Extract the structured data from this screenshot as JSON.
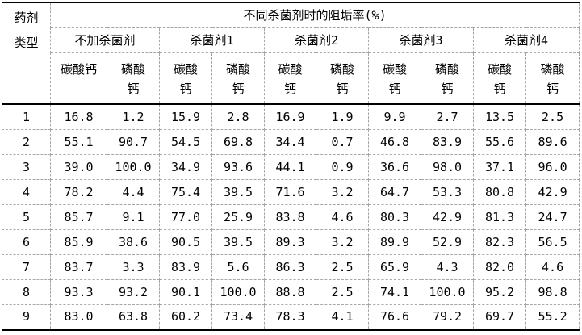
{
  "chart_data": {
    "type": "table",
    "title": "不同杀菌剂时的阻垢率(%)",
    "corner": [
      "药剂",
      "类型"
    ],
    "groups": [
      {
        "label": "不加杀菌剂",
        "subs": [
          [
            "碳酸钙"
          ],
          [
            "磷酸",
            "钙"
          ]
        ]
      },
      {
        "label": "杀菌剂1",
        "subs": [
          [
            "碳酸",
            "钙"
          ],
          [
            "磷酸",
            "钙"
          ]
        ]
      },
      {
        "label": "杀菌剂2",
        "subs": [
          [
            "碳酸",
            "钙"
          ],
          [
            "磷酸",
            "钙"
          ]
        ]
      },
      {
        "label": "杀菌剂3",
        "subs": [
          [
            "碳酸",
            "钙"
          ],
          [
            "磷酸",
            "钙"
          ]
        ]
      },
      {
        "label": "杀菌剂4",
        "subs": [
          [
            "碳酸",
            "钙"
          ],
          [
            "磷酸",
            "钙"
          ]
        ]
      }
    ],
    "rows": [
      {
        "label": "1",
        "values": [
          "16.8",
          "1.2",
          "15.9",
          "2.8",
          "16.9",
          "1.9",
          "9.9",
          "2.7",
          "13.5",
          "2.5"
        ]
      },
      {
        "label": "2",
        "values": [
          "55.1",
          "90.7",
          "54.5",
          "69.8",
          "34.4",
          "0.7",
          "46.8",
          "83.9",
          "55.6",
          "89.6"
        ]
      },
      {
        "label": "3",
        "values": [
          "39.0",
          "100.0",
          "34.9",
          "93.6",
          "44.1",
          "0.9",
          "36.6",
          "98.0",
          "37.1",
          "96.0"
        ]
      },
      {
        "label": "4",
        "values": [
          "78.2",
          "4.4",
          "75.4",
          "39.5",
          "71.6",
          "3.2",
          "64.7",
          "53.3",
          "80.8",
          "42.9"
        ]
      },
      {
        "label": "5",
        "values": [
          "85.7",
          "9.1",
          "77.0",
          "25.9",
          "83.8",
          "4.6",
          "80.3",
          "42.9",
          "81.3",
          "24.7"
        ]
      },
      {
        "label": "6",
        "values": [
          "85.9",
          "38.6",
          "90.5",
          "39.5",
          "89.3",
          "3.2",
          "89.9",
          "52.9",
          "82.3",
          "56.5"
        ]
      },
      {
        "label": "7",
        "values": [
          "83.7",
          "3.3",
          "83.9",
          "5.6",
          "86.3",
          "2.5",
          "65.9",
          "4.3",
          "82.0",
          "4.6"
        ]
      },
      {
        "label": "8",
        "values": [
          "93.3",
          "93.2",
          "90.1",
          "100.0",
          "88.8",
          "2.5",
          "74.1",
          "100.0",
          "95.2",
          "98.8"
        ]
      },
      {
        "label": "9",
        "values": [
          "83.0",
          "63.8",
          "60.2",
          "73.4",
          "78.3",
          "4.1",
          "76.6",
          "79.2",
          "69.7",
          "55.2"
        ]
      }
    ],
    "colors": {
      "text": "#000000",
      "solid_border": "#000000",
      "dashed_border": "#a6a6a6",
      "background": "#ffffff"
    }
  }
}
